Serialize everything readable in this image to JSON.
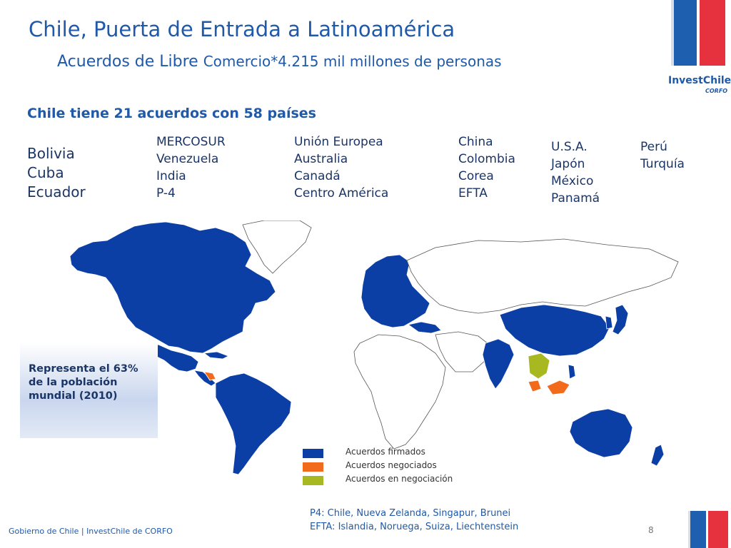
{
  "header": {
    "title": "Chile, Puerta de Entrada a Latinoamérica",
    "subtitle_part1": "Acuerdos de Libre ",
    "subtitle_part2": "Comercio*4.215 mil millones de personas"
  },
  "logo": {
    "brand": "InvestChile",
    "sub": "CORFO"
  },
  "heading": "Chile tiene 21 acuerdos con 58 países",
  "columns": [
    [
      "Bolivia",
      "Cuba",
      "Ecuador"
    ],
    [
      "MERCOSUR",
      "Venezuela",
      "India",
      "P-4"
    ],
    [
      "Unión Europea",
      "Australia",
      "Canadá",
      "Centro América"
    ],
    [
      "China",
      "Colombia",
      "Corea",
      "EFTA"
    ],
    [
      "U.S.A.",
      "Japón",
      "México",
      "Panamá"
    ],
    [
      "Perú",
      "Turquía"
    ]
  ],
  "note": "Representa el 63% de la población mundial (2010)",
  "legend": [
    {
      "label": "Acuerdos firmados",
      "color": "#0c3fa6"
    },
    {
      "label": "Acuerdos negociados",
      "color": "#f26b1d"
    },
    {
      "label": "Acuerdos en negociación",
      "color": "#a8b820"
    }
  ],
  "footnote": {
    "line1": "P4: Chile, Nueva Zelanda, Singapur, Brunei",
    "line2": "EFTA: Islandia, Noruega, Suiza, Liechtenstein"
  },
  "footer": "Gobierno de Chile | InvestChile de CORFO",
  "page_number": "8",
  "colors": {
    "accent": "#1f59a8",
    "signed": "#0c3fa6",
    "negotiated": "#f26b1d",
    "negotiating": "#a8b820",
    "flag_blue": "#1f5fb0",
    "flag_red": "#e5323e"
  }
}
